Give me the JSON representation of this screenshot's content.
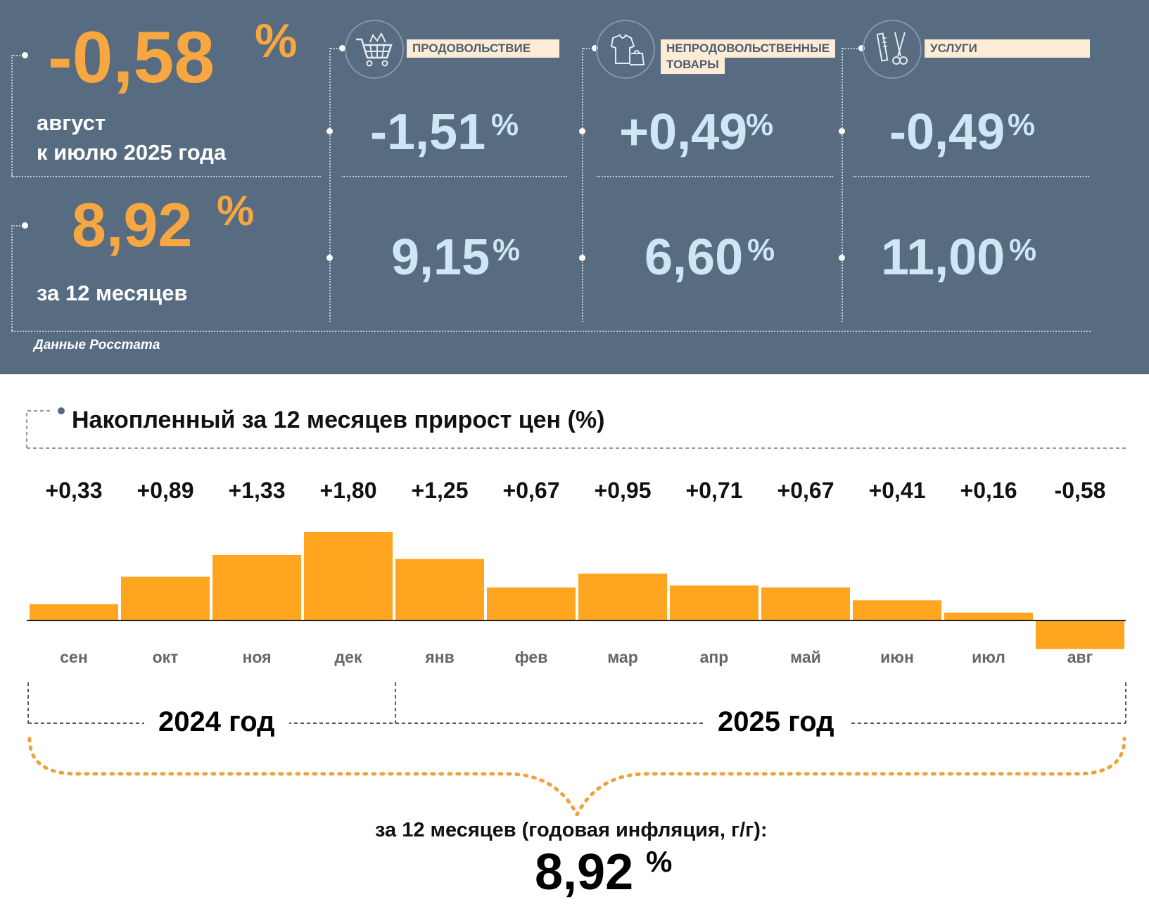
{
  "headline": {
    "monthly_value": "-0,58",
    "monthly_unit": "%",
    "monthly_caption_line1": "август",
    "monthly_caption_line2": "к июлю 2025 года",
    "annual_value": "8,92",
    "annual_unit": "%",
    "annual_caption": "за 12 месяцев"
  },
  "categories": [
    {
      "label": "ПРОДОВОЛЬСТВИЕ",
      "icon": "shopping-cart-icon",
      "monthly": "-1,51",
      "annual": "9,15",
      "unit": "%"
    },
    {
      "label_line1": "НЕПРОДОВОЛЬСТВЕННЫЕ",
      "label_line2": "ТОВАРЫ",
      "icon": "clothing-bag-icon",
      "monthly": "+0,49",
      "annual": "6,60",
      "unit": "%"
    },
    {
      "label": "УСЛУГИ",
      "icon": "comb-scissors-icon",
      "monthly": "-0,49",
      "annual": "11,00",
      "unit": "%"
    }
  ],
  "source": "Данные Росстата",
  "colors": {
    "panel": "#576b81",
    "orange": "#f7a741",
    "light_blue": "#cde8f4",
    "bar": "#ffa51f"
  },
  "chart_data": {
    "type": "bar",
    "title": "Накопленный за 12 месяцев прирост цен (%)",
    "categories": [
      "сен",
      "окт",
      "ноя",
      "дек",
      "янв",
      "фев",
      "мар",
      "апр",
      "май",
      "июн",
      "июл",
      "авг"
    ],
    "values": [
      0.33,
      0.89,
      1.33,
      1.8,
      1.25,
      0.67,
      0.95,
      0.71,
      0.67,
      0.41,
      0.16,
      -0.58
    ],
    "value_labels": [
      "+0,33",
      "+0,89",
      "+1,33",
      "+1,80",
      "+1,25",
      "+0,67",
      "+0,95",
      "+0,71",
      "+0,67",
      "+0,41",
      "+0,16",
      "-0,58"
    ],
    "years": [
      "2024 год",
      "2025 год"
    ],
    "ylim": [
      -0.58,
      1.8
    ],
    "grid": false,
    "summary_label": "за 12 месяцев (годовая инфляция, г/г):",
    "summary_value": "8,92",
    "summary_unit": "%"
  }
}
